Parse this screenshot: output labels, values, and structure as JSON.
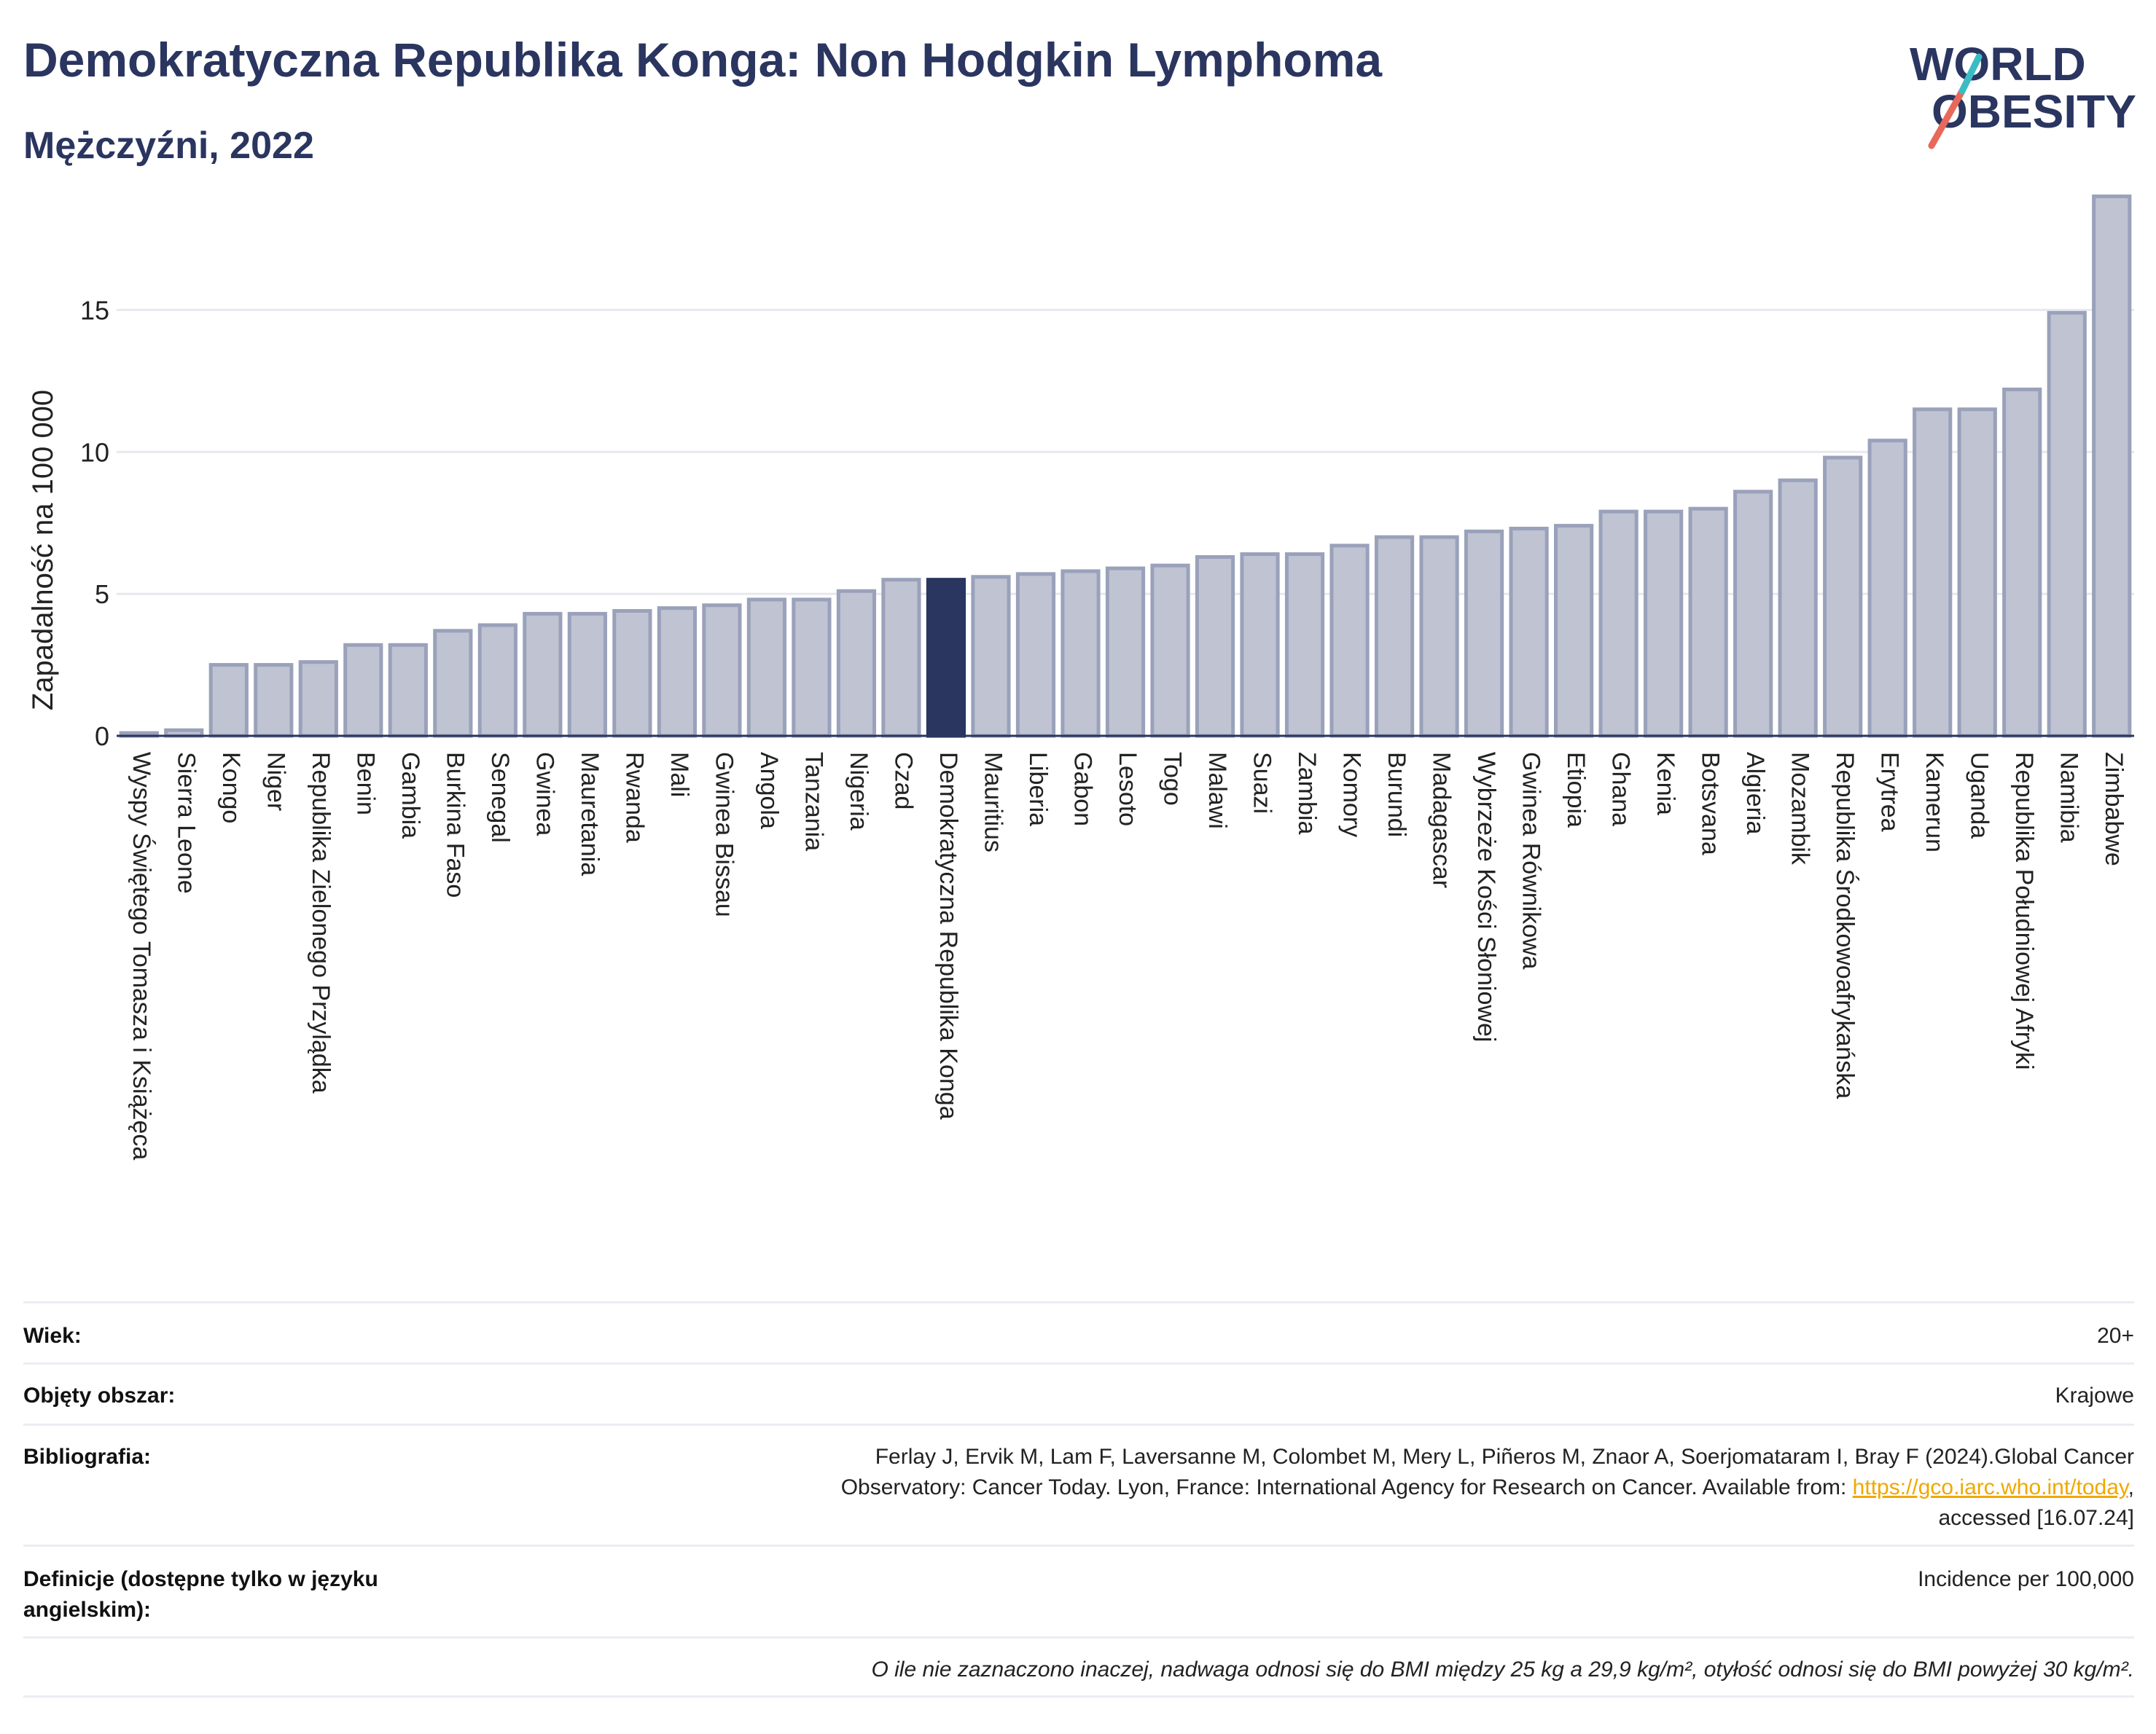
{
  "header": {
    "title": "Demokratyczna Republika Konga: Non Hodgkin Lymphoma",
    "subtitle": "Mężczyźni, 2022"
  },
  "logo": {
    "line1": "WORLD",
    "line2": "OBESITY"
  },
  "colors": {
    "bar": "#bfc3d2",
    "bar_border": "#9aa1ba",
    "highlight": "#2a3560",
    "grid": "#e6e8ee",
    "accent_red": "#e8685a",
    "accent_teal": "#3bbcc4"
  },
  "chart_data": {
    "type": "bar",
    "ylabel": "Zapadalność na 100 000",
    "ylim": [
      0,
      19.5
    ],
    "yticks": [
      0,
      5,
      10,
      15
    ],
    "grid": true,
    "highlight": "Demokratyczna Republika Konga",
    "categories": [
      "Wyspy Świętego Tomasza i Książęca",
      "Sierra Leone",
      "Kongo",
      "Niger",
      "Republika Zielonego Przylądka",
      "Benin",
      "Gambia",
      "Burkina Faso",
      "Senegal",
      "Gwinea",
      "Mauretania",
      "Rwanda",
      "Mali",
      "Gwinea Bissau",
      "Angola",
      "Tanzania",
      "Nigeria",
      "Czad",
      "Demokratyczna Republika Konga",
      "Mauritius",
      "Liberia",
      "Gabon",
      "Lesoto",
      "Togo",
      "Malawi",
      "Suazi",
      "Zambia",
      "Komory",
      "Burundi",
      "Madagascar",
      "Wybrzeże Kości Słoniowej",
      "Gwinea Równikowa",
      "Etiopia",
      "Ghana",
      "Kenia",
      "Botsvana",
      "Algieria",
      "Mozambik",
      "Republika Środkowoafrykańska",
      "Erytrea",
      "Kamerun",
      "Uganda",
      "Republika Południowej Afryki",
      "Namibia",
      "Zimbabwe"
    ],
    "values": [
      0.1,
      0.2,
      2.5,
      2.5,
      2.6,
      3.2,
      3.2,
      3.7,
      3.9,
      4.3,
      4.3,
      4.4,
      4.5,
      4.6,
      4.8,
      4.8,
      5.1,
      5.5,
      5.5,
      5.6,
      5.7,
      5.8,
      5.9,
      6.0,
      6.3,
      6.4,
      6.4,
      6.7,
      7.0,
      7.0,
      7.2,
      7.3,
      7.4,
      7.9,
      7.9,
      8.0,
      8.6,
      9.0,
      9.8,
      10.4,
      11.5,
      11.5,
      12.2,
      14.9,
      19.0
    ]
  },
  "info": {
    "age_label": "Wiek:",
    "age_value": "20+",
    "coverage_label": "Objęty obszar:",
    "coverage_value": "Krajowe",
    "biblio_label": "Bibliografia:",
    "biblio_line1": "Ferlay J, Ervik M, Lam F, Laversanne M, Colombet M, Mery L, Piñeros M, Znaor A, Soerjomataram I, Bray F (2024).Global Cancer",
    "biblio_line2_pre": "Observatory: Cancer Today. Lyon, France: International Agency for Research on Cancer. Available from: ",
    "biblio_link": "https://gco.iarc.who.int/today",
    "biblio_line2_post": ",",
    "biblio_line3": "accessed [16.07.24]",
    "def_label": "Definicje (dostępne tylko w języku angielskim):",
    "def_value": "Incidence per 100,000",
    "note": "O ile nie zaznaczono inaczej, nadwaga odnosi się do BMI między 25 kg a 29,9 kg/m², otyłość odnosi się do BMI powyżej 30 kg/m²."
  }
}
